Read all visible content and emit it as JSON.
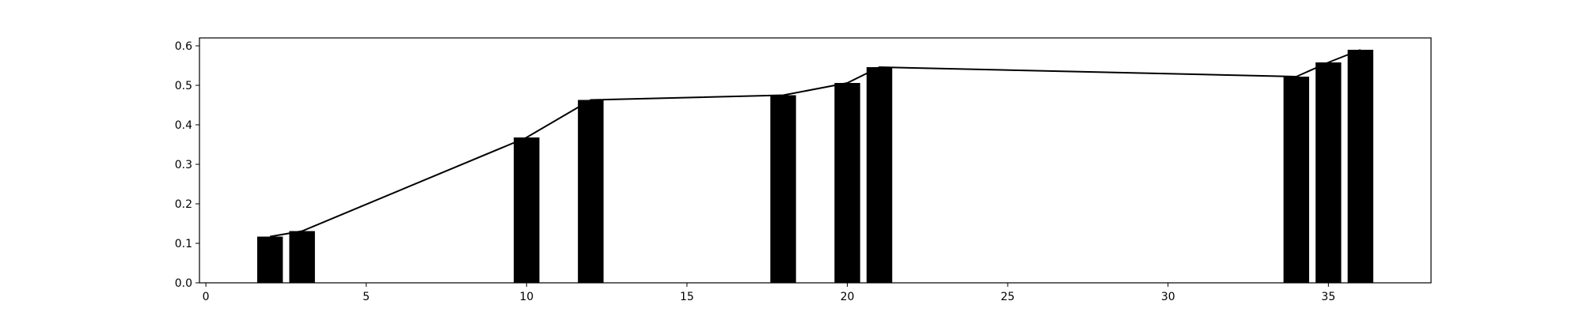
{
  "chart_data": {
    "type": "bar",
    "x": [
      2,
      3,
      10,
      12,
      18,
      20,
      21,
      34,
      35,
      36
    ],
    "values": [
      0.117,
      0.131,
      0.368,
      0.463,
      0.475,
      0.506,
      0.546,
      0.522,
      0.558,
      0.59
    ],
    "line_values": [
      0.117,
      0.131,
      0.368,
      0.463,
      0.475,
      0.506,
      0.546,
      0.522,
      0.558,
      0.59
    ],
    "xlim": [
      -0.2,
      38.2
    ],
    "ylim": [
      0,
      0.62
    ],
    "xticks": [
      "0",
      "5",
      "10",
      "15",
      "20",
      "25",
      "30",
      "35"
    ],
    "yticks": [
      "0.0",
      "0.1",
      "0.2",
      "0.3",
      "0.4",
      "0.5",
      "0.6"
    ],
    "title": "",
    "xlabel": "",
    "ylabel": "",
    "grid": false,
    "bar_color": "#000000",
    "line_color": "#000000"
  }
}
